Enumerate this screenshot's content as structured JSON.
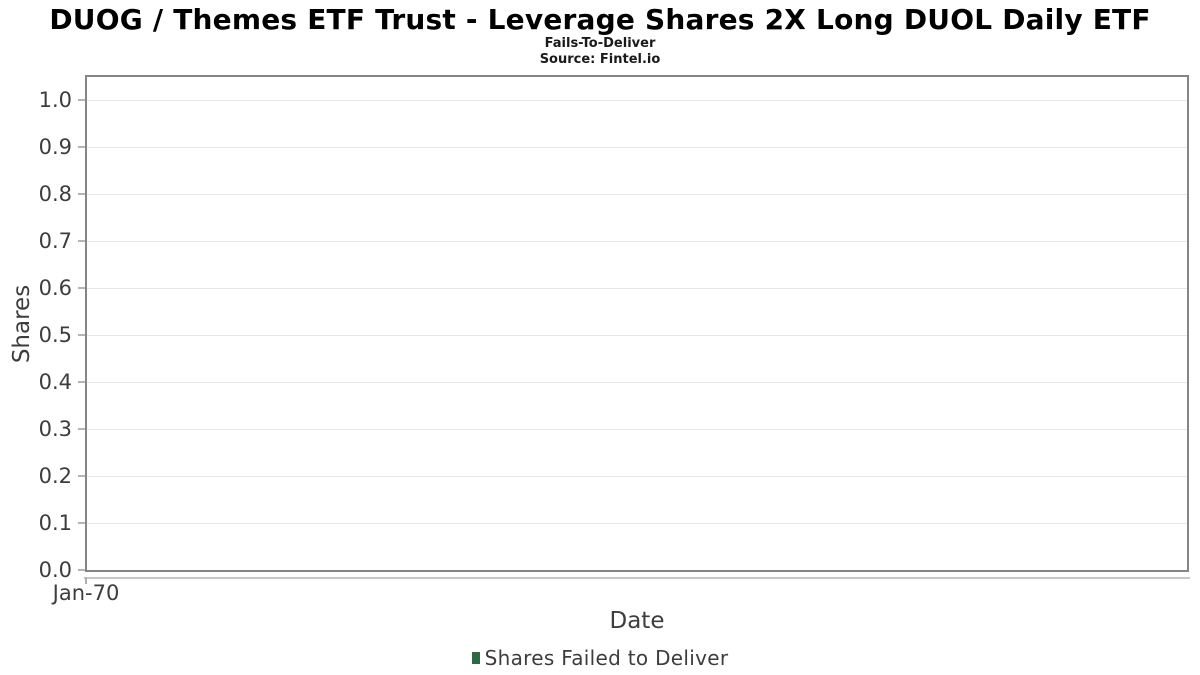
{
  "chart_data": {
    "type": "bar",
    "title": "DUOG / Themes ETF Trust - Leverage Shares 2X Long DUOL Daily ETF",
    "subtitle": "Fails-To-Deliver",
    "source": "Source: Fintel.io",
    "xlabel": "Date",
    "ylabel": "Shares",
    "x_ticks": [
      "Jan-70"
    ],
    "y_ticks": [
      0.0,
      0.1,
      0.2,
      0.3,
      0.4,
      0.5,
      0.6,
      0.7,
      0.8,
      0.9,
      1.0
    ],
    "ylim": [
      0.0,
      1.0
    ],
    "grid": "horizontal-only",
    "legend_position": "bottom-center",
    "series": [
      {
        "name": "Shares Failed to Deliver",
        "x": [],
        "values": [],
        "color": "#2d6a3f"
      }
    ],
    "legend": {
      "entries": [
        {
          "label": "Shares Failed to Deliver",
          "swatch_color": "#2d6a3f"
        }
      ]
    },
    "colors": {
      "title_text": "#000000",
      "axis_text": "#3d3d3d",
      "plot_border": "#858585",
      "gridline": "#e7e7e7",
      "tick_mark": "#b5b5b5",
      "x_axis_line": "#c8c8c8",
      "background": "#ffffff"
    }
  }
}
